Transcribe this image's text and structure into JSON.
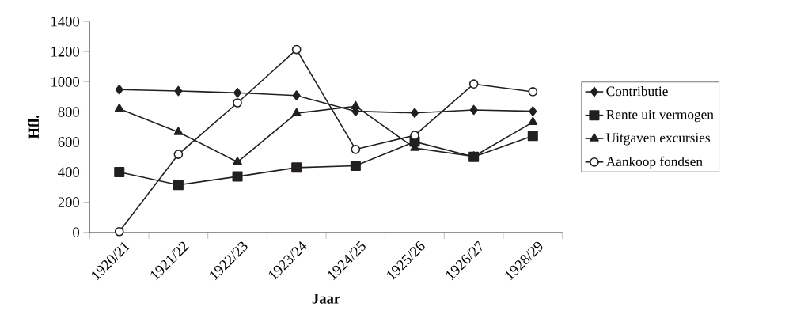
{
  "chart_data": {
    "type": "line",
    "xlabel": "Jaar",
    "ylabel": "Hfl.",
    "categories": [
      "1920/21",
      "1921/22",
      "1922/23",
      "1923/24",
      "1924/25",
      "1925/26",
      "1926/27",
      "1928/29"
    ],
    "ylim": [
      0,
      1400
    ],
    "yticks": [
      0,
      200,
      400,
      600,
      800,
      1000,
      1200,
      1400
    ],
    "grid": false,
    "legend": "right",
    "series": [
      {
        "name": "Contributie",
        "color": "#231f20",
        "marker": "diamond",
        "values": [
          948,
          939,
          927,
          909,
          804,
          793,
          813,
          804
        ]
      },
      {
        "name": "Rente uit vermogen",
        "color": "#231f20",
        "marker": "square",
        "values": [
          400,
          315,
          371,
          430,
          442,
          602,
          501,
          641
        ]
      },
      {
        "name": "Uitgaven excursies",
        "color": "#231f20",
        "marker": "triangle",
        "values": [
          821,
          666,
          467,
          791,
          838,
          560,
          504,
          732
        ]
      },
      {
        "name": "Aankoop fondsen",
        "color": "#231f20",
        "marker": "circle",
        "values": [
          5,
          518,
          860,
          1214,
          551,
          644,
          985,
          934
        ]
      }
    ]
  }
}
